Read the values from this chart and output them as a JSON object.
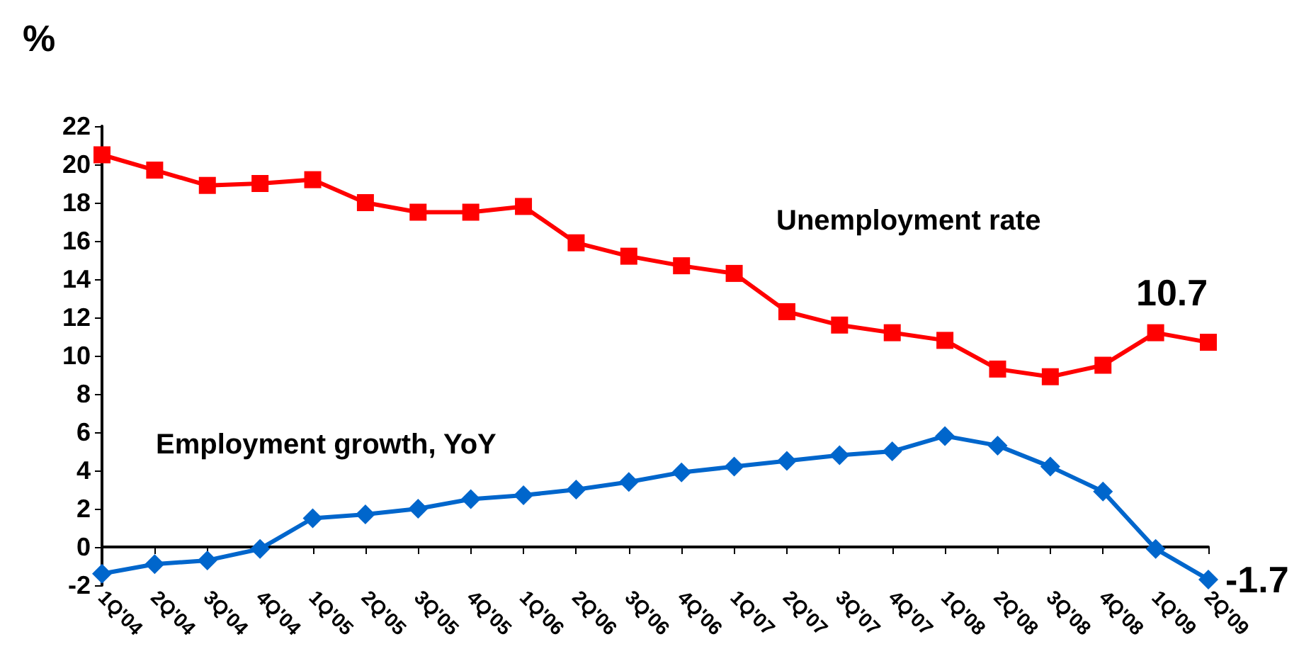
{
  "chart_data": {
    "type": "line",
    "ylabel": "%",
    "categories": [
      "1Q'04",
      "2Q'04",
      "3Q'04",
      "4Q'04",
      "1Q'05",
      "2Q'05",
      "3Q'05",
      "4Q'05",
      "1Q'06",
      "2Q'06",
      "3Q'06",
      "4Q'06",
      "1Q'07",
      "2Q'07",
      "3Q'07",
      "4Q'07",
      "1Q'08",
      "2Q'08",
      "3Q'08",
      "4Q'08",
      "1Q'09",
      "2Q'09"
    ],
    "series": [
      {
        "name": "Unemployment rate",
        "color": "#ff0000",
        "marker": "square",
        "values": [
          20.5,
          19.7,
          18.9,
          19.0,
          19.2,
          18.0,
          17.5,
          17.5,
          17.8,
          15.9,
          15.2,
          14.7,
          14.3,
          12.3,
          11.6,
          11.2,
          10.8,
          9.3,
          8.9,
          9.5,
          11.2,
          10.7
        ],
        "value_labels": [
          null,
          null,
          null,
          null,
          null,
          null,
          null,
          null,
          null,
          null,
          null,
          null,
          null,
          null,
          null,
          null,
          null,
          null,
          null,
          null,
          null,
          "10.7"
        ]
      },
      {
        "name": "Employment growth, YoY",
        "color": "#0066cc",
        "marker": "diamond",
        "values": [
          -1.4,
          -0.9,
          -0.7,
          -0.1,
          1.5,
          1.7,
          2.0,
          2.5,
          2.7,
          3.0,
          3.4,
          3.9,
          4.2,
          4.5,
          4.8,
          5.0,
          5.8,
          5.3,
          4.2,
          2.9,
          -0.1,
          -1.7
        ],
        "value_labels": [
          null,
          null,
          null,
          null,
          null,
          null,
          null,
          null,
          null,
          null,
          null,
          null,
          null,
          null,
          null,
          null,
          null,
          null,
          null,
          null,
          null,
          "-1.7"
        ]
      }
    ],
    "ylim": [
      -2,
      22
    ],
    "yticks": [
      -2,
      0,
      2,
      4,
      6,
      8,
      10,
      12,
      14,
      16,
      18,
      20,
      22
    ],
    "grid": false,
    "legend": false
  }
}
